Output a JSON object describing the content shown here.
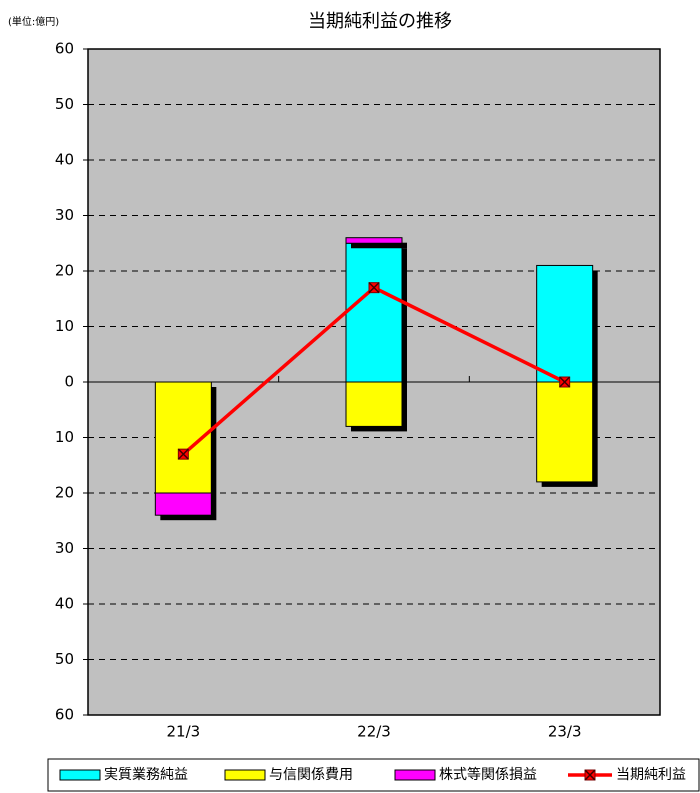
{
  "chart_data": {
    "type": "bar",
    "title": "当期純利益の推移",
    "unit_label": "(単位:億円)",
    "categories": [
      "21/3",
      "22/3",
      "23/3"
    ],
    "series": [
      {
        "name": "実質業務純益",
        "color": "#00ffff",
        "values": [
          0,
          25,
          21
        ]
      },
      {
        "name": "与信関係費用",
        "color": "#ffff00",
        "values": [
          -20,
          -8,
          -18
        ]
      },
      {
        "name": "株式等関係損益",
        "color": "#ff00ff",
        "values": [
          -4,
          1,
          0
        ]
      },
      {
        "name": "当期純利益",
        "color": "#ff0000",
        "type": "line",
        "values": [
          -13,
          17,
          0
        ]
      }
    ],
    "ylim": [
      -60,
      60
    ],
    "yticks": [
      {
        "value": -60,
        "label": "60"
      },
      {
        "value": -50,
        "label": "50"
      },
      {
        "value": -40,
        "label": "40"
      },
      {
        "value": -30,
        "label": "30"
      },
      {
        "value": -20,
        "label": "20"
      },
      {
        "value": -10,
        "label": "10"
      },
      0,
      10,
      20,
      30,
      40,
      50,
      60
    ],
    "grid": true,
    "plot_background": "#c0c0c0",
    "legend": "bottom"
  }
}
